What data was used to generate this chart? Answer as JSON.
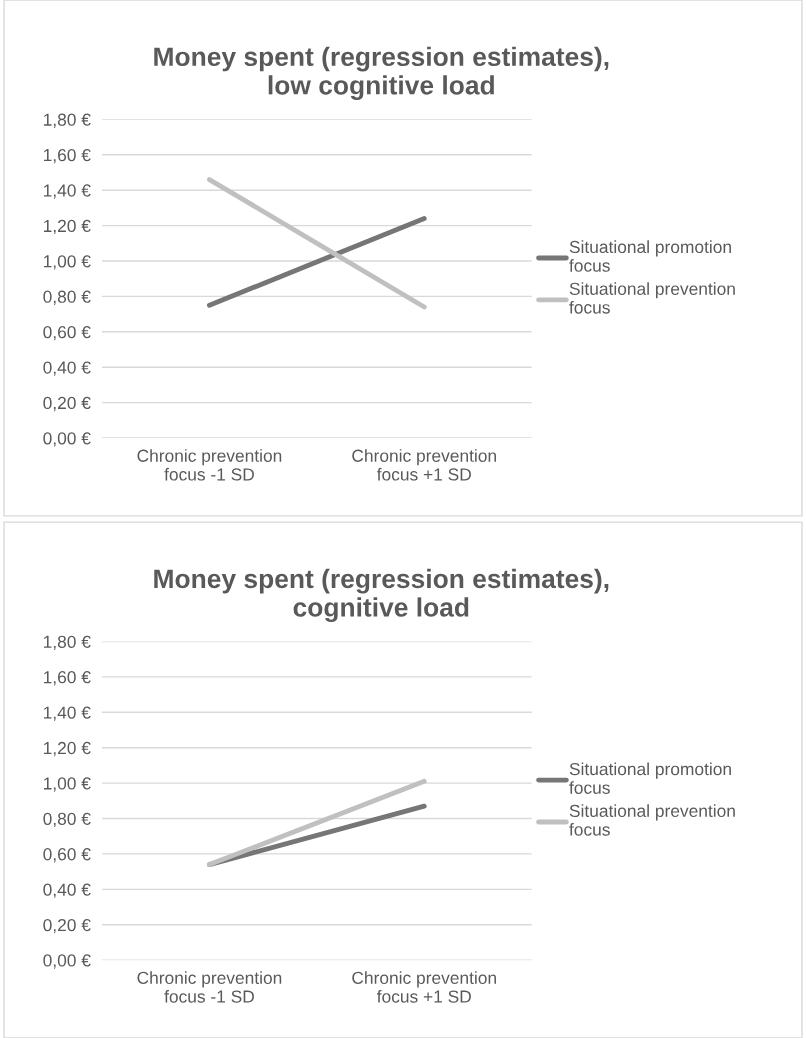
{
  "chart_data": [
    {
      "type": "line",
      "title": "Money spent (regression estimates),\nlow cognitive load",
      "categories": [
        "Chronic prevention\nfocus -1 SD",
        "Chronic prevention\nfocus +1 SD"
      ],
      "series": [
        {
          "name": "Situational promotion\nfocus",
          "color": "#767676",
          "values": [
            0.75,
            1.24
          ]
        },
        {
          "name": "Situational prevention\nfocus",
          "color": "#c0c0c0",
          "values": [
            1.46,
            0.74
          ]
        }
      ],
      "ylim": [
        0,
        1.8
      ],
      "yticks": [
        {
          "value": 0,
          "label": "0,00 €"
        },
        {
          "value": 0.2,
          "label": "0,20 €"
        },
        {
          "value": 0.4,
          "label": "0,40 €"
        },
        {
          "value": 0.6,
          "label": "0,60 €"
        },
        {
          "value": 0.8,
          "label": "0,80 €"
        },
        {
          "value": 1.0,
          "label": "1,00 €"
        },
        {
          "value": 1.2,
          "label": "1,20 €"
        },
        {
          "value": 1.4,
          "label": "1,40 €"
        },
        {
          "value": 1.6,
          "label": "1,60 €"
        },
        {
          "value": 1.8,
          "label": "1,80 €"
        }
      ],
      "grid": "y",
      "legend": "right",
      "marker": "none",
      "line_style": "solid"
    },
    {
      "type": "line",
      "title": "Money spent (regression estimates),\ncognitive load",
      "categories": [
        "Chronic prevention\nfocus -1 SD",
        "Chronic prevention\nfocus +1 SD"
      ],
      "series": [
        {
          "name": "Situational promotion\nfocus",
          "color": "#767676",
          "values": [
            0.54,
            0.87
          ]
        },
        {
          "name": "Situational prevention\nfocus",
          "color": "#c0c0c0",
          "values": [
            0.54,
            1.01
          ]
        }
      ],
      "ylim": [
        0,
        1.8
      ],
      "yticks": [
        {
          "value": 0,
          "label": "0,00 €"
        },
        {
          "value": 0.2,
          "label": "0,20 €"
        },
        {
          "value": 0.4,
          "label": "0,40 €"
        },
        {
          "value": 0.6,
          "label": "0,60 €"
        },
        {
          "value": 0.8,
          "label": "0,80 €"
        },
        {
          "value": 1.0,
          "label": "1,00 €"
        },
        {
          "value": 1.2,
          "label": "1,20 €"
        },
        {
          "value": 1.4,
          "label": "1,40 €"
        },
        {
          "value": 1.6,
          "label": "1,60 €"
        },
        {
          "value": 1.8,
          "label": "1,80 €"
        }
      ],
      "grid": "y",
      "legend": "right",
      "marker": "none",
      "line_style": "solid"
    }
  ]
}
